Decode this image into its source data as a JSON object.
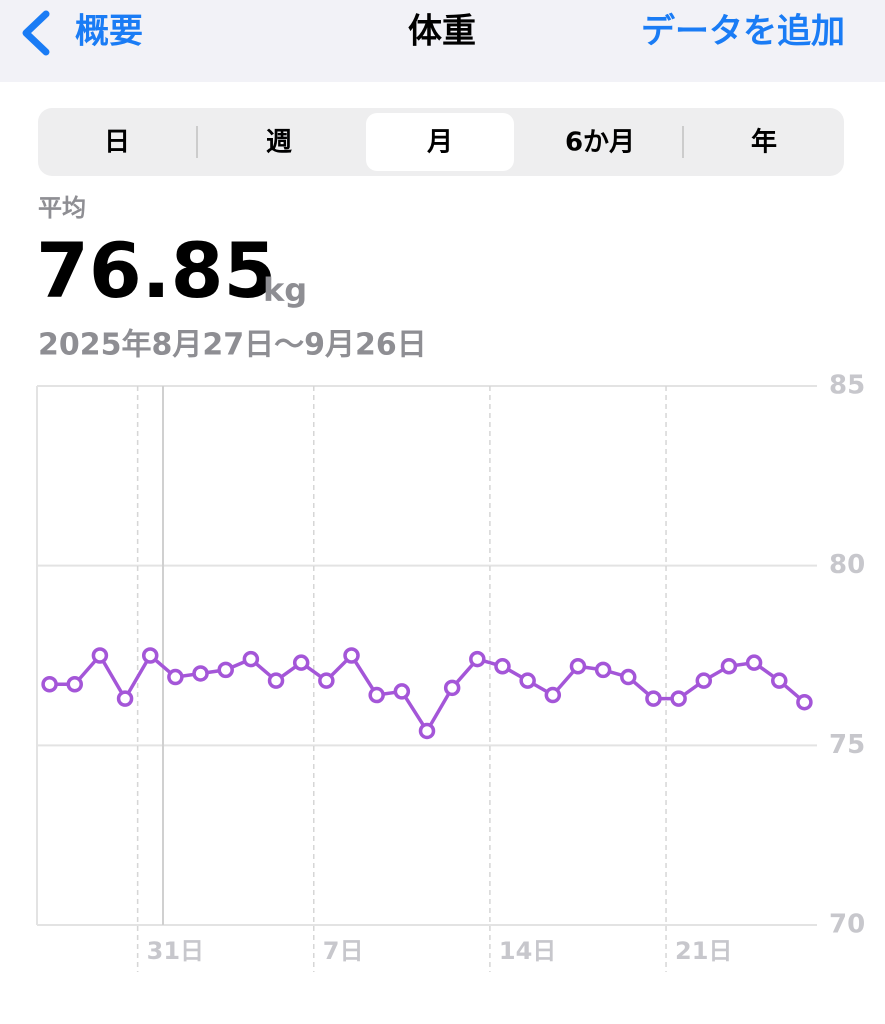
{
  "header": {
    "back": "概要",
    "title": "体重",
    "action": "データを追加"
  },
  "segments": [
    "日",
    "週",
    "月",
    "6か月",
    "年"
  ],
  "summary": {
    "label": "平均",
    "value": 76.85,
    "unit": "kg",
    "range": "2025年8月27日～9月26日"
  },
  "chart_data": {
    "type": "line",
    "categories": [
      null,
      null,
      null,
      null,
      "31日",
      null,
      null,
      null,
      null,
      null,
      null,
      "7日",
      null,
      null,
      null,
      null,
      null,
      null,
      "14日",
      null,
      null,
      null,
      null,
      null,
      null,
      "21日",
      null,
      null,
      null,
      null,
      null
    ],
    "series": [
      {
        "color": "#a456d8",
        "values": [
          76.7,
          76.7,
          77.5,
          76.3,
          77.5,
          76.9,
          77.0,
          77.1,
          77.4,
          76.8,
          77.3,
          76.8,
          77.5,
          76.4,
          76.5,
          75.4,
          76.6,
          77.4,
          77.2,
          76.8,
          76.4,
          77.2,
          77.1,
          76.9,
          76.3,
          76.3,
          76.8,
          77.2,
          77.3,
          76.8,
          76.2
        ]
      }
    ],
    "ylim": [
      70,
      85
    ],
    "yticks": [
      70,
      75,
      80,
      85
    ],
    "grid": true
  }
}
